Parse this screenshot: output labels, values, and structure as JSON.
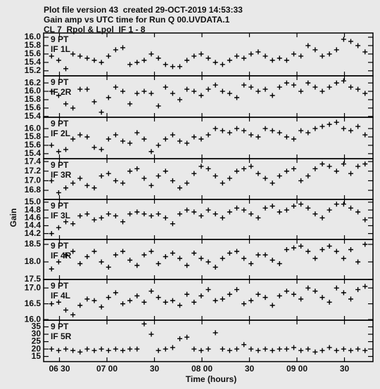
{
  "header": {
    "lines": [
      "Plot file version 43  created 29-OCT-2019 14:53:33",
      "Gain amp vs UTC time for Run Q 00.UVDATA.1",
      "CL 7  Rpol & Lpol  IF 1 - 8"
    ]
  },
  "axes": {
    "ylabel": "Gain",
    "xlabel": "Time (hours)"
  },
  "x_axis": {
    "xlim": [
      20,
      228
    ],
    "xticks": [
      {
        "value": 30,
        "label": "06 30"
      },
      {
        "value": 60,
        "label": "07 00"
      },
      {
        "value": 90,
        "label": "30"
      },
      {
        "value": 120,
        "label": "08 00"
      },
      {
        "value": 150,
        "label": "30"
      },
      {
        "value": 180,
        "label": "09 00"
      },
      {
        "value": 210,
        "label": "30"
      }
    ],
    "x": [
      25,
      29.5,
      34,
      38.5,
      43,
      47.5,
      52,
      56.5,
      61,
      65.5,
      70,
      74.5,
      79,
      83.5,
      88,
      92.5,
      97,
      101.5,
      106,
      110.5,
      115,
      119.5,
      124,
      128.5,
      133,
      137.5,
      142,
      146.5,
      151,
      155.5,
      160,
      164.5,
      169,
      173.5,
      178,
      182.5,
      187,
      191.5,
      196,
      200.5,
      205,
      209.5,
      214,
      218.5,
      223
    ]
  },
  "chart_data": [
    {
      "type": "scatter",
      "labels": [
        "9 PT",
        "IF 1L"
      ],
      "color": "#000000",
      "ylim": [
        15.08,
        16.1
      ],
      "yticks": [
        {
          "value": 16.0,
          "label": "16.0"
        },
        15.8,
        15.6,
        15.4,
        15.2
      ],
      "values": [
        15.55,
        15.45,
        15.25,
        15.6,
        15.55,
        15.5,
        15.45,
        15.4,
        15.55,
        15.7,
        15.75,
        15.35,
        15.4,
        15.45,
        15.6,
        15.5,
        15.35,
        15.3,
        15.3,
        15.45,
        15.55,
        15.6,
        15.5,
        15.4,
        15.35,
        15.45,
        15.55,
        15.5,
        15.6,
        15.65,
        15.55,
        15.45,
        15.5,
        15.45,
        15.6,
        15.55,
        15.8,
        15.7,
        15.55,
        15.6,
        15.7,
        15.95,
        15.9,
        15.8,
        15.65
      ]
    },
    {
      "type": "scatter",
      "labels": [
        "9 PT",
        "IF 2R"
      ],
      "color": "#000000",
      "ylim": [
        15.38,
        16.37
      ],
      "yticks": [
        16.2,
        {
          "value": 16.0,
          "label": "16.0"
        },
        15.8,
        15.6,
        15.4
      ],
      "values": [
        16.0,
        15.9,
        15.7,
        15.6,
        16.05,
        16.05,
        15.75,
        15.5,
        15.85,
        16.1,
        16.0,
        15.7,
        15.95,
        16.0,
        15.95,
        15.65,
        16.1,
        15.95,
        15.8,
        16.05,
        16.0,
        15.9,
        16.05,
        16.15,
        16.0,
        15.95,
        15.85,
        16.15,
        16.1,
        16.0,
        16.05,
        15.9,
        16.1,
        16.2,
        16.15,
        16.0,
        16.2,
        16.1,
        16.0,
        16.1,
        16.2,
        16.25,
        16.1,
        16.05,
        15.95
      ]
    },
    {
      "type": "scatter",
      "labels": [
        "9 PT",
        "IF 2L"
      ],
      "color": "#000000",
      "ylim": [
        15.28,
        16.27
      ],
      "yticks": [
        {
          "value": 16.0,
          "label": "16.0"
        },
        15.8,
        15.6,
        15.4
      ],
      "values": [
        15.6,
        15.45,
        15.5,
        15.75,
        15.85,
        15.8,
        15.55,
        15.5,
        15.75,
        15.85,
        15.7,
        15.65,
        15.9,
        15.75,
        15.45,
        15.6,
        15.75,
        15.85,
        15.7,
        15.65,
        15.8,
        15.75,
        15.85,
        16.0,
        15.95,
        15.9,
        16.0,
        15.95,
        15.85,
        15.8,
        16.0,
        15.95,
        15.9,
        15.8,
        15.75,
        15.95,
        15.9,
        16.0,
        16.05,
        16.1,
        16.15,
        16.0,
        15.95,
        16.05,
        15.85
      ]
    },
    {
      "type": "scatter",
      "labels": [
        "9 PT",
        "IF 3R"
      ],
      "color": "#000000",
      "ylim": [
        16.61,
        17.46
      ],
      "yticks": [
        17.4,
        17.2,
        {
          "value": 17.0,
          "label": "17.0"
        },
        16.8
      ],
      "values": [
        17.0,
        16.75,
        16.85,
        16.95,
        17.05,
        16.9,
        16.85,
        17.1,
        17.15,
        17.0,
        16.95,
        17.2,
        17.25,
        17.05,
        16.9,
        17.1,
        17.2,
        17.0,
        16.85,
        16.95,
        17.15,
        17.3,
        17.25,
        17.1,
        16.95,
        17.05,
        17.2,
        17.25,
        17.3,
        17.15,
        17.05,
        16.95,
        17.1,
        17.2,
        17.25,
        17.0,
        17.1,
        17.25,
        17.35,
        17.3,
        17.2,
        17.35,
        17.15,
        17.3,
        17.35
      ]
    },
    {
      "type": "scatter",
      "labels": [
        "9 PT",
        "IF 3L"
      ],
      "color": "#000000",
      "ylim": [
        14.05,
        15.07
      ],
      "yticks": [
        {
          "value": 15.0,
          "label": "15.0"
        },
        14.8,
        14.6,
        14.4,
        14.2
      ],
      "values": [
        14.2,
        14.35,
        14.5,
        14.45,
        14.65,
        14.7,
        14.55,
        14.6,
        14.7,
        14.65,
        14.5,
        14.7,
        14.75,
        14.7,
        14.65,
        14.7,
        14.6,
        14.45,
        14.7,
        14.8,
        14.75,
        14.65,
        14.8,
        14.7,
        14.6,
        14.75,
        14.85,
        14.8,
        14.7,
        14.6,
        14.85,
        14.9,
        14.75,
        14.8,
        14.9,
        14.95,
        14.85,
        14.7,
        14.6,
        14.8,
        14.95,
        14.95,
        14.85,
        14.75,
        14.55
      ]
    },
    {
      "type": "scatter",
      "labels": [
        "9 PT",
        "IF 4R"
      ],
      "color": "#000000",
      "ylim": [
        17.5,
        18.64
      ],
      "yticks": [
        18.5,
        {
          "value": 18.0,
          "label": "18.0"
        },
        17.5
      ],
      "values": [
        17.8,
        18.0,
        18.2,
        18.3,
        17.95,
        18.15,
        18.3,
        18.0,
        17.85,
        18.2,
        18.3,
        18.05,
        17.9,
        18.2,
        18.3,
        17.95,
        18.15,
        18.25,
        18.1,
        17.9,
        18.25,
        18.1,
        18.0,
        17.85,
        18.1,
        18.25,
        18.3,
        18.1,
        17.95,
        18.2,
        18.2,
        18.05,
        17.95,
        18.35,
        18.4,
        18.45,
        18.3,
        18.1,
        18.35,
        18.45,
        18.3,
        18.1,
        18.35,
        18.0,
        18.5
      ]
    },
    {
      "type": "scatter",
      "labels": [
        "9 PT",
        "IF 4L"
      ],
      "color": "#000000",
      "ylim": [
        15.98,
        17.27
      ],
      "yticks": [
        {
          "value": 17.0,
          "label": "17.0"
        },
        16.5,
        {
          "value": 16.0,
          "label": "16.0"
        }
      ],
      "values": [
        16.5,
        16.55,
        16.3,
        16.15,
        16.45,
        16.65,
        16.6,
        16.4,
        16.7,
        16.85,
        16.5,
        16.6,
        16.75,
        16.55,
        16.9,
        16.7,
        16.55,
        16.6,
        16.45,
        16.8,
        16.55,
        16.75,
        16.95,
        16.6,
        16.65,
        16.8,
        16.95,
        16.5,
        16.6,
        16.8,
        16.7,
        16.45,
        16.75,
        16.9,
        16.8,
        16.65,
        17.0,
        16.9,
        16.7,
        16.55,
        17.0,
        16.85,
        16.65,
        16.95,
        17.05
      ]
    },
    {
      "type": "scatter",
      "labels": [
        "9 PT",
        "IF 5R"
      ],
      "color": "#000000",
      "ylim": [
        11.5,
        39.5
      ],
      "yticks": [
        35,
        30,
        25,
        20,
        15
      ],
      "values": [
        20,
        19,
        20,
        19,
        18,
        20,
        19,
        20,
        19,
        20,
        19,
        20,
        20,
        37,
        30,
        19,
        20,
        21,
        27,
        28,
        20,
        19,
        20,
        31,
        20,
        19,
        20,
        23,
        20,
        19,
        20,
        19,
        20,
        20,
        21,
        19,
        20,
        18,
        19,
        21,
        19,
        20,
        19,
        20,
        19
      ]
    }
  ]
}
